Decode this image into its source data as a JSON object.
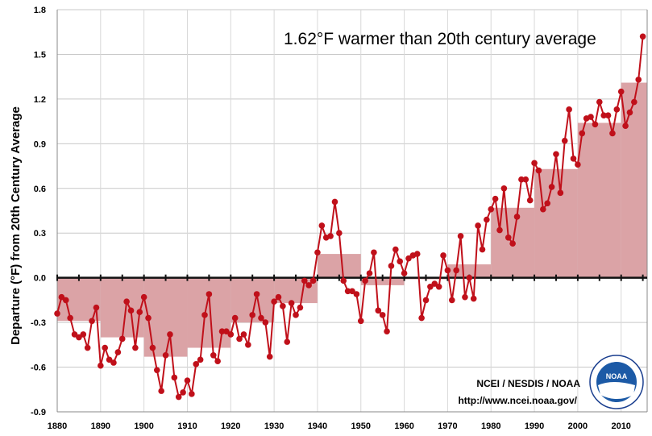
{
  "chart_data": {
    "type": "line",
    "annotation": "1.62°F warmer than 20th century average",
    "ylabel": "Departure (°F) from 20th Century Average",
    "xlabel": "",
    "xlim": [
      1880,
      2016
    ],
    "ylim": [
      -0.9,
      1.8
    ],
    "xticks": [
      "1880",
      "1890",
      "1900",
      "1910",
      "1920",
      "1930",
      "1940",
      "1950",
      "1960",
      "1970",
      "1980",
      "1990",
      "2000",
      "2010"
    ],
    "yticks": [
      "-0.9",
      "-0.6",
      "-0.3",
      "0.0",
      "0.3",
      "0.6",
      "0.9",
      "1.2",
      "1.5",
      "1.8"
    ],
    "grid": true,
    "line_color": "#c0101a",
    "bar_color": "#dba3a6",
    "x_start": 1880,
    "values": [
      -0.24,
      -0.13,
      -0.15,
      -0.27,
      -0.38,
      -0.4,
      -0.38,
      -0.47,
      -0.29,
      -0.2,
      -0.59,
      -0.47,
      -0.55,
      -0.57,
      -0.5,
      -0.41,
      -0.16,
      -0.22,
      -0.47,
      -0.23,
      -0.13,
      -0.27,
      -0.47,
      -0.62,
      -0.76,
      -0.52,
      -0.38,
      -0.67,
      -0.8,
      -0.77,
      -0.69,
      -0.78,
      -0.58,
      -0.55,
      -0.25,
      -0.11,
      -0.52,
      -0.56,
      -0.36,
      -0.36,
      -0.38,
      -0.27,
      -0.41,
      -0.38,
      -0.45,
      -0.25,
      -0.11,
      -0.27,
      -0.3,
      -0.53,
      -0.16,
      -0.13,
      -0.19,
      -0.43,
      -0.17,
      -0.25,
      -0.2,
      -0.02,
      -0.05,
      -0.02,
      0.17,
      0.35,
      0.27,
      0.28,
      0.51,
      0.3,
      -0.02,
      -0.09,
      -0.09,
      -0.11,
      -0.29,
      -0.02,
      0.03,
      0.17,
      -0.22,
      -0.25,
      -0.36,
      0.08,
      0.19,
      0.11,
      0.03,
      0.13,
      0.15,
      0.16,
      -0.27,
      -0.15,
      -0.06,
      -0.04,
      -0.06,
      0.15,
      0.05,
      -0.15,
      0.05,
      0.28,
      -0.13,
      0.0,
      -0.14,
      0.35,
      0.19,
      0.39,
      0.46,
      0.53,
      0.32,
      0.6,
      0.27,
      0.23,
      0.41,
      0.66,
      0.66,
      0.52,
      0.77,
      0.72,
      0.46,
      0.5,
      0.61,
      0.83,
      0.57,
      0.92,
      1.13,
      0.8,
      0.76,
      0.97,
      1.07,
      1.08,
      1.03,
      1.18,
      1.09,
      1.09,
      0.97,
      1.13,
      1.25,
      1.02,
      1.11,
      1.18,
      1.33,
      1.62
    ],
    "decadal_averages": [
      {
        "start": 1880,
        "end": 1890,
        "value": -0.29
      },
      {
        "start": 1890,
        "end": 1900,
        "value": -0.4
      },
      {
        "start": 1900,
        "end": 1910,
        "value": -0.53
      },
      {
        "start": 1910,
        "end": 1920,
        "value": -0.47
      },
      {
        "start": 1920,
        "end": 1930,
        "value": -0.3
      },
      {
        "start": 1930,
        "end": 1940,
        "value": -0.17
      },
      {
        "start": 1940,
        "end": 1950,
        "value": 0.16
      },
      {
        "start": 1950,
        "end": 1960,
        "value": -0.05
      },
      {
        "start": 1960,
        "end": 1970,
        "value": -0.01
      },
      {
        "start": 1970,
        "end": 1980,
        "value": 0.09
      },
      {
        "start": 1980,
        "end": 1990,
        "value": 0.47
      },
      {
        "start": 1990,
        "end": 2000,
        "value": 0.73
      },
      {
        "start": 2000,
        "end": 2010,
        "value": 1.04
      },
      {
        "start": 2010,
        "end": 2016,
        "value": 1.31
      }
    ]
  },
  "credits": {
    "line1": "NCEI / NESDIS / NOAA",
    "line2": "http://www.ncei.noaa.gov/"
  },
  "logo_text": "NOAA"
}
